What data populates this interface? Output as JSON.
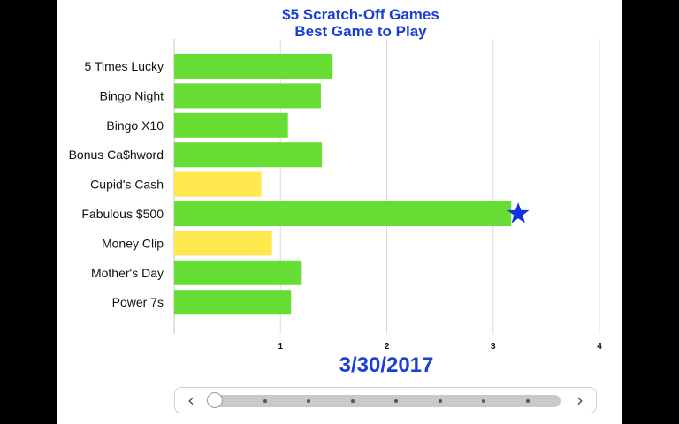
{
  "chart_data": {
    "type": "bar",
    "orientation": "horizontal",
    "title": "$5 Scratch-Off Games",
    "subtitle": "Best Game to Play",
    "date": "3/30/2017",
    "categories": [
      "5 Times Lucky",
      "Bingo Night",
      "Bingo X10",
      "Bonus Ca$hword",
      "Cupid's Cash",
      "Fabulous $500",
      "Money Clip",
      "Mother's Day",
      "Power 7s"
    ],
    "values": [
      1.49,
      1.38,
      1.07,
      1.39,
      0.82,
      3.17,
      0.92,
      1.2,
      1.1
    ],
    "bar_colors": [
      "#66dd33",
      "#66dd33",
      "#66dd33",
      "#66dd33",
      "#ffe84d",
      "#66dd33",
      "#ffe84d",
      "#66dd33",
      "#66dd33"
    ],
    "highlight": {
      "category": "Fabulous $500",
      "marker": "star-icon",
      "color": "#1133dd"
    },
    "xlim": [
      0,
      4
    ],
    "xticks": [
      "1",
      "2",
      "3",
      "4"
    ],
    "xlabel": "",
    "ylabel": "",
    "grid": true,
    "legend": "none"
  },
  "colors": {
    "title": "#1a3fd6",
    "panel": "#ffffff",
    "background": "#000000"
  },
  "slider": {
    "prev_icon": "chevron-left-icon",
    "next_icon": "chevron-right-icon",
    "position": 0,
    "steps": 8
  }
}
